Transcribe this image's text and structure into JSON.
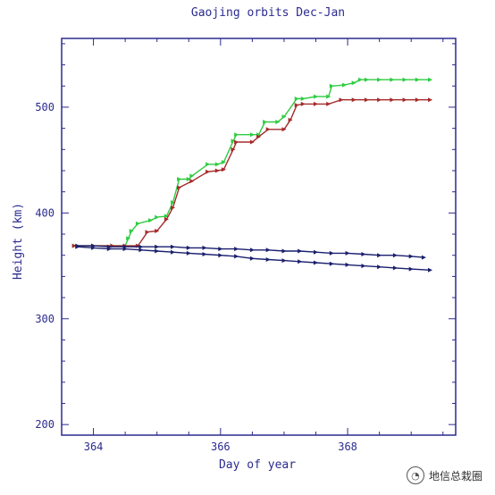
{
  "chart_data": {
    "type": "line",
    "title": "Gaojing orbits Dec-Jan",
    "xlabel": "Day of year",
    "ylabel": "Height (km)",
    "xlim": [
      363.5,
      369.7
    ],
    "ylim": [
      190,
      565
    ],
    "xticks": [
      364,
      366,
      368
    ],
    "yticks": [
      200,
      300,
      400,
      500
    ],
    "grid": false,
    "legend": "none",
    "series": [
      {
        "color": "#2ecc40",
        "x": [
          363.7,
          364.0,
          364.3,
          364.5,
          364.55,
          364.6,
          364.7,
          364.9,
          365.0,
          365.15,
          365.25,
          365.35,
          365.5,
          365.55,
          365.8,
          365.95,
          366.05,
          366.2,
          366.25,
          366.5,
          366.6,
          366.7,
          366.9,
          367.0,
          367.2,
          367.3,
          367.5,
          367.7,
          367.75,
          367.95,
          368.1,
          368.2,
          368.3,
          368.5,
          368.7,
          368.9,
          369.1,
          369.3
        ],
        "y": [
          369,
          369,
          369,
          369,
          376,
          383,
          390,
          393,
          396,
          397,
          410,
          432,
          432,
          435,
          446,
          446,
          448,
          468,
          474,
          474,
          474,
          486,
          486,
          491,
          508,
          508,
          510,
          510,
          520,
          521,
          523,
          526,
          526,
          526,
          526,
          526,
          526,
          526
        ]
      },
      {
        "color": "#a52a2a",
        "x": [
          363.7,
          364.0,
          364.3,
          364.5,
          364.7,
          364.85,
          365.0,
          365.15,
          365.25,
          365.35,
          365.55,
          365.8,
          365.95,
          366.05,
          366.2,
          366.25,
          366.5,
          366.6,
          366.75,
          367.0,
          367.1,
          367.2,
          367.3,
          367.5,
          367.7,
          367.9,
          368.1,
          368.3,
          368.5,
          368.7,
          368.9,
          369.1,
          369.3
        ],
        "y": [
          369,
          369,
          369,
          369,
          369,
          382,
          383,
          394,
          405,
          424,
          430,
          439,
          440,
          441,
          460,
          467,
          467,
          472,
          479,
          479,
          488,
          502,
          503,
          503,
          503,
          507,
          507,
          507,
          507,
          507,
          507,
          507,
          507
        ]
      },
      {
        "color": "#1a1f6e",
        "x": [
          363.75,
          364.0,
          364.25,
          364.5,
          364.75,
          365.0,
          365.25,
          365.5,
          365.75,
          366.0,
          366.25,
          366.5,
          366.75,
          367.0,
          367.25,
          367.5,
          367.75,
          368.0,
          368.25,
          368.5,
          368.75,
          369.0,
          369.2
        ],
        "y": [
          369,
          369,
          368,
          368,
          368,
          368,
          368,
          367,
          367,
          366,
          366,
          365,
          365,
          364,
          364,
          363,
          362,
          362,
          361,
          360,
          360,
          359,
          358
        ]
      },
      {
        "color": "#1a1f6e",
        "x": [
          363.75,
          364.0,
          364.25,
          364.5,
          364.75,
          365.0,
          365.25,
          365.5,
          365.75,
          366.0,
          366.25,
          366.5,
          366.75,
          367.0,
          367.25,
          367.5,
          367.75,
          368.0,
          368.25,
          368.5,
          368.75,
          369.0,
          369.3
        ],
        "y": [
          368,
          367,
          366,
          366,
          365,
          364,
          363,
          362,
          361,
          360,
          359,
          357,
          356,
          355,
          354,
          353,
          352,
          351,
          350,
          349,
          348,
          347,
          346
        ]
      }
    ]
  },
  "watermark": {
    "text": "地信总栽圈",
    "icon": "wechat-icon"
  }
}
